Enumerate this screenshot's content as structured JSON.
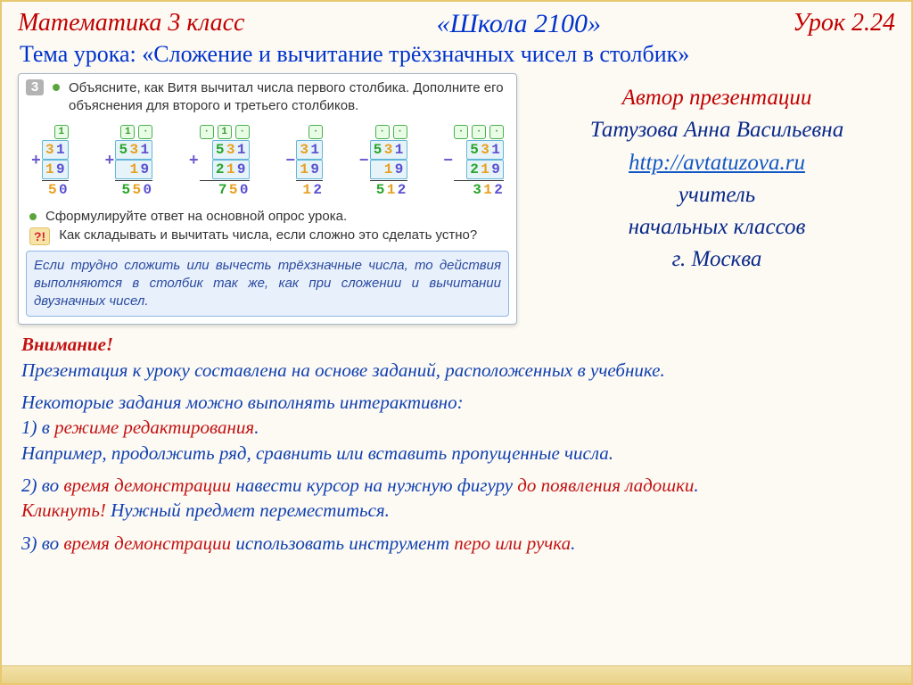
{
  "header": {
    "left": "Математика  3 класс",
    "center": "«Школа 2100»",
    "right": "Урок 2.24"
  },
  "topic": "Тема урока: «Сложение и вычитание трёхзначных чисел в столбик»",
  "textbook": {
    "task_num": "3",
    "task_line1": "Объясните, как Витя вычитал числа первого столбика.",
    "task_line2": "Дополните его объяснения для второго и третьего столбиков.",
    "columns": [
      {
        "sign": "+",
        "carry": [
          "1"
        ],
        "top": [
          {
            "t": "3",
            "c": "c2"
          },
          {
            "t": "1",
            "c": "c3"
          }
        ],
        "bot": [
          {
            "t": "1",
            "c": "c2"
          },
          {
            "t": "9",
            "c": "c3"
          }
        ],
        "res": [
          {
            "t": "5",
            "c": "c2"
          },
          {
            "t": "0",
            "c": "c3"
          }
        ]
      },
      {
        "sign": "+",
        "carry": [
          "1",
          "·"
        ],
        "top": [
          {
            "t": "5",
            "c": "c1"
          },
          {
            "t": "3",
            "c": "c2"
          },
          {
            "t": "1",
            "c": "c3"
          }
        ],
        "bot": [
          {
            "t": " ",
            "c": ""
          },
          {
            "t": "1",
            "c": "c2"
          },
          {
            "t": "9",
            "c": "c3"
          }
        ],
        "res": [
          {
            "t": "5",
            "c": "c1"
          },
          {
            "t": "5",
            "c": "c2"
          },
          {
            "t": "0",
            "c": "c3"
          }
        ]
      },
      {
        "sign": "+",
        "carry": [
          "·",
          "1",
          "·"
        ],
        "top": [
          {
            "t": "5",
            "c": "c1"
          },
          {
            "t": "3",
            "c": "c2"
          },
          {
            "t": "1",
            "c": "c3"
          }
        ],
        "bot": [
          {
            "t": "2",
            "c": "c1"
          },
          {
            "t": "1",
            "c": "c2"
          },
          {
            "t": "9",
            "c": "c3"
          }
        ],
        "res": [
          {
            "t": "7",
            "c": "c1"
          },
          {
            "t": "5",
            "c": "c2"
          },
          {
            "t": "0",
            "c": "c3"
          }
        ]
      },
      {
        "sign": "−",
        "carry": [
          "·"
        ],
        "top": [
          {
            "t": "3",
            "c": "c2"
          },
          {
            "t": "1",
            "c": "c3"
          }
        ],
        "bot": [
          {
            "t": "1",
            "c": "c2"
          },
          {
            "t": "9",
            "c": "c3"
          }
        ],
        "res": [
          {
            "t": "1",
            "c": "c2"
          },
          {
            "t": "2",
            "c": "c3"
          }
        ]
      },
      {
        "sign": "−",
        "carry": [
          "·",
          "·"
        ],
        "top": [
          {
            "t": "5",
            "c": "c1"
          },
          {
            "t": "3",
            "c": "c2"
          },
          {
            "t": "1",
            "c": "c3"
          }
        ],
        "bot": [
          {
            "t": " ",
            "c": ""
          },
          {
            "t": "1",
            "c": "c2"
          },
          {
            "t": "9",
            "c": "c3"
          }
        ],
        "res": [
          {
            "t": "5",
            "c": "c1"
          },
          {
            "t": "1",
            "c": "c2"
          },
          {
            "t": "2",
            "c": "c3"
          }
        ]
      },
      {
        "sign": "−",
        "carry": [
          "·",
          "·",
          "·"
        ],
        "top": [
          {
            "t": "5",
            "c": "c1"
          },
          {
            "t": "3",
            "c": "c2"
          },
          {
            "t": "1",
            "c": "c3"
          }
        ],
        "bot": [
          {
            "t": "2",
            "c": "c1"
          },
          {
            "t": "1",
            "c": "c2"
          },
          {
            "t": "9",
            "c": "c3"
          }
        ],
        "res": [
          {
            "t": "3",
            "c": "c1"
          },
          {
            "t": "1",
            "c": "c2"
          },
          {
            "t": "2",
            "c": "c3"
          }
        ]
      }
    ],
    "formulate": "Сформулируйте ответ на основной опрос урока.",
    "question": "Как складывать и вычитать числа, если сложно это сделать устно?",
    "bluebox": "Если трудно сложить или вычесть трёхзначные числа, то действия выполняются в столбик так же, как при сложении и вычитании двузначных чисел."
  },
  "author": {
    "title": "Автор презентации",
    "name": "Татузова Анна Васильевна",
    "url": "http://avtatuzova.ru",
    "role1": "учитель",
    "role2": "начальных классов",
    "city": "г. Москва"
  },
  "notes": {
    "attention": "Внимание!",
    "p1": "Презентация к уроку составлена на основе заданий, расположенных в учебнике.",
    "p2a": "Некоторые задания можно выполнять интерактивно:",
    "p2b_pre": "1) в ",
    "p2b_red": "режиме редактирования",
    "p2b_post": ".",
    "p3": "Например, продолжить ряд, сравнить или вставить пропущенные числа.",
    "p4_pre": "2) во ",
    "p4_r1": "время демонстрации",
    "p4_mid": " навести курсор на  нужную фигуру ",
    "p4_r2": "до появления ладошки",
    "p4_post": ".",
    "p5_r": "Кликнуть!",
    "p5_rest": " Нужный предмет переместиться.",
    "p6_pre": "3) во ",
    "p6_r": "время демонстрации",
    "p6_mid": " использовать инструмент ",
    "p6_r2": "перо или ручка",
    "p6_post": "."
  }
}
